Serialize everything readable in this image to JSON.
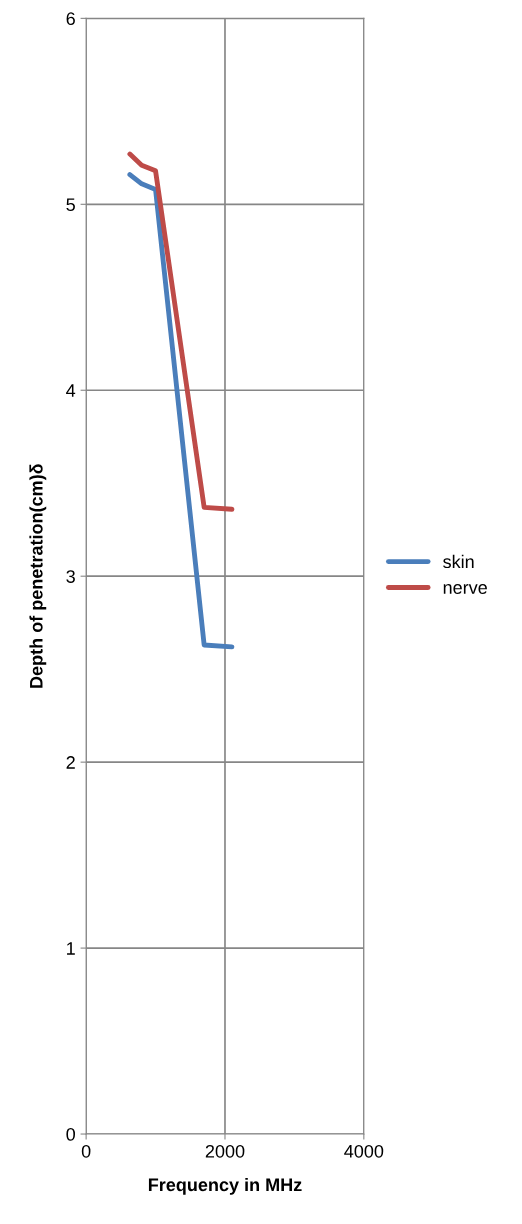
{
  "chart_data": {
    "type": "line",
    "xlabel": "Frequency in MHz",
    "ylabel": "Depth of penetration(cm)δ",
    "x": [
      630,
      800,
      1000,
      1700,
      2100
    ],
    "series": [
      {
        "name": "skin",
        "color": "#4a7ebb",
        "values": [
          5.16,
          5.11,
          5.08,
          2.63,
          2.62
        ]
      },
      {
        "name": "nerve",
        "color": "#be4b48",
        "values": [
          5.27,
          5.21,
          5.18,
          3.37,
          3.36
        ]
      }
    ],
    "xlim": [
      0,
      4000
    ],
    "xticks": [
      0,
      2000,
      4000
    ],
    "ylim": [
      0,
      6
    ],
    "yticks": [
      0,
      1,
      2,
      3,
      4,
      5,
      6
    ],
    "grid": true,
    "legend": "right",
    "marker": "none",
    "line_style": "solid"
  }
}
